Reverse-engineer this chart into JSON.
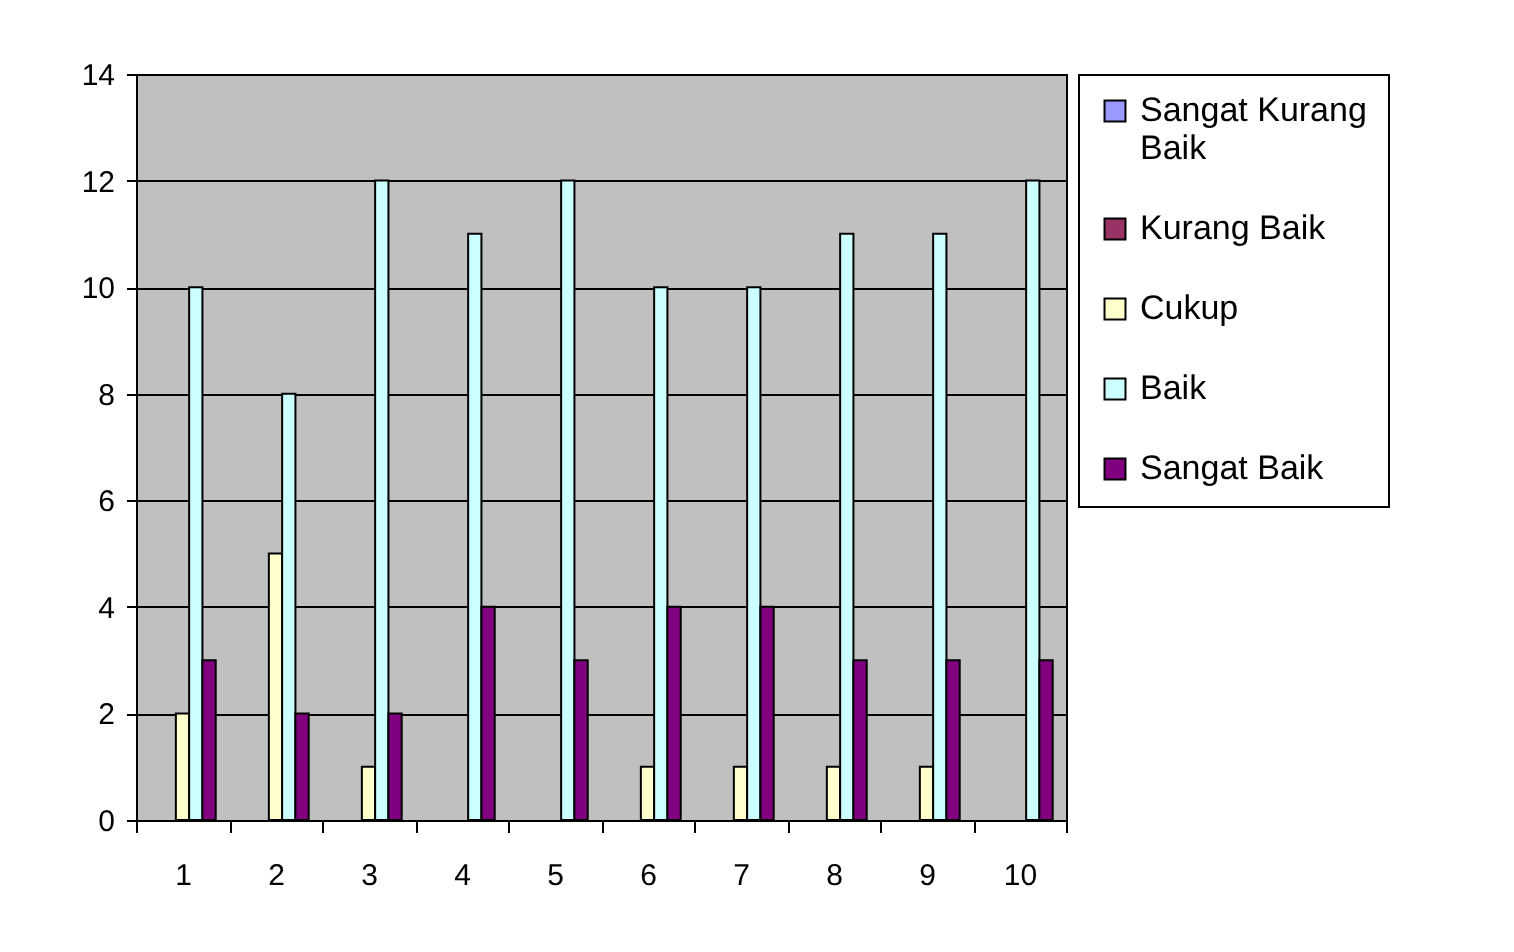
{
  "chart_data": {
    "type": "bar",
    "categories": [
      "1",
      "2",
      "3",
      "4",
      "5",
      "6",
      "7",
      "8",
      "9",
      "10"
    ],
    "series": [
      {
        "name": "Sangat Kurang Baik",
        "color": "#9999ff",
        "values": [
          0,
          0,
          0,
          0,
          0,
          0,
          0,
          0,
          0,
          0
        ]
      },
      {
        "name": "Kurang Baik",
        "color": "#993366",
        "values": [
          0,
          0,
          0,
          0,
          0,
          0,
          0,
          0,
          0,
          0
        ]
      },
      {
        "name": "Cukup",
        "color": "#ffffcc",
        "values": [
          2,
          5,
          1,
          0,
          0,
          1,
          1,
          1,
          1,
          0
        ]
      },
      {
        "name": "Baik",
        "color": "#ccffff",
        "values": [
          10,
          8,
          12,
          11,
          12,
          10,
          10,
          11,
          11,
          12
        ]
      },
      {
        "name": "Sangat Baik",
        "color": "#800080",
        "values": [
          3,
          2,
          2,
          4,
          3,
          4,
          4,
          3,
          3,
          3
        ]
      }
    ],
    "ylim": [
      0,
      14
    ],
    "yticks": [
      0,
      2,
      4,
      6,
      8,
      10,
      12,
      14
    ],
    "grid": "y",
    "legend": "right"
  }
}
